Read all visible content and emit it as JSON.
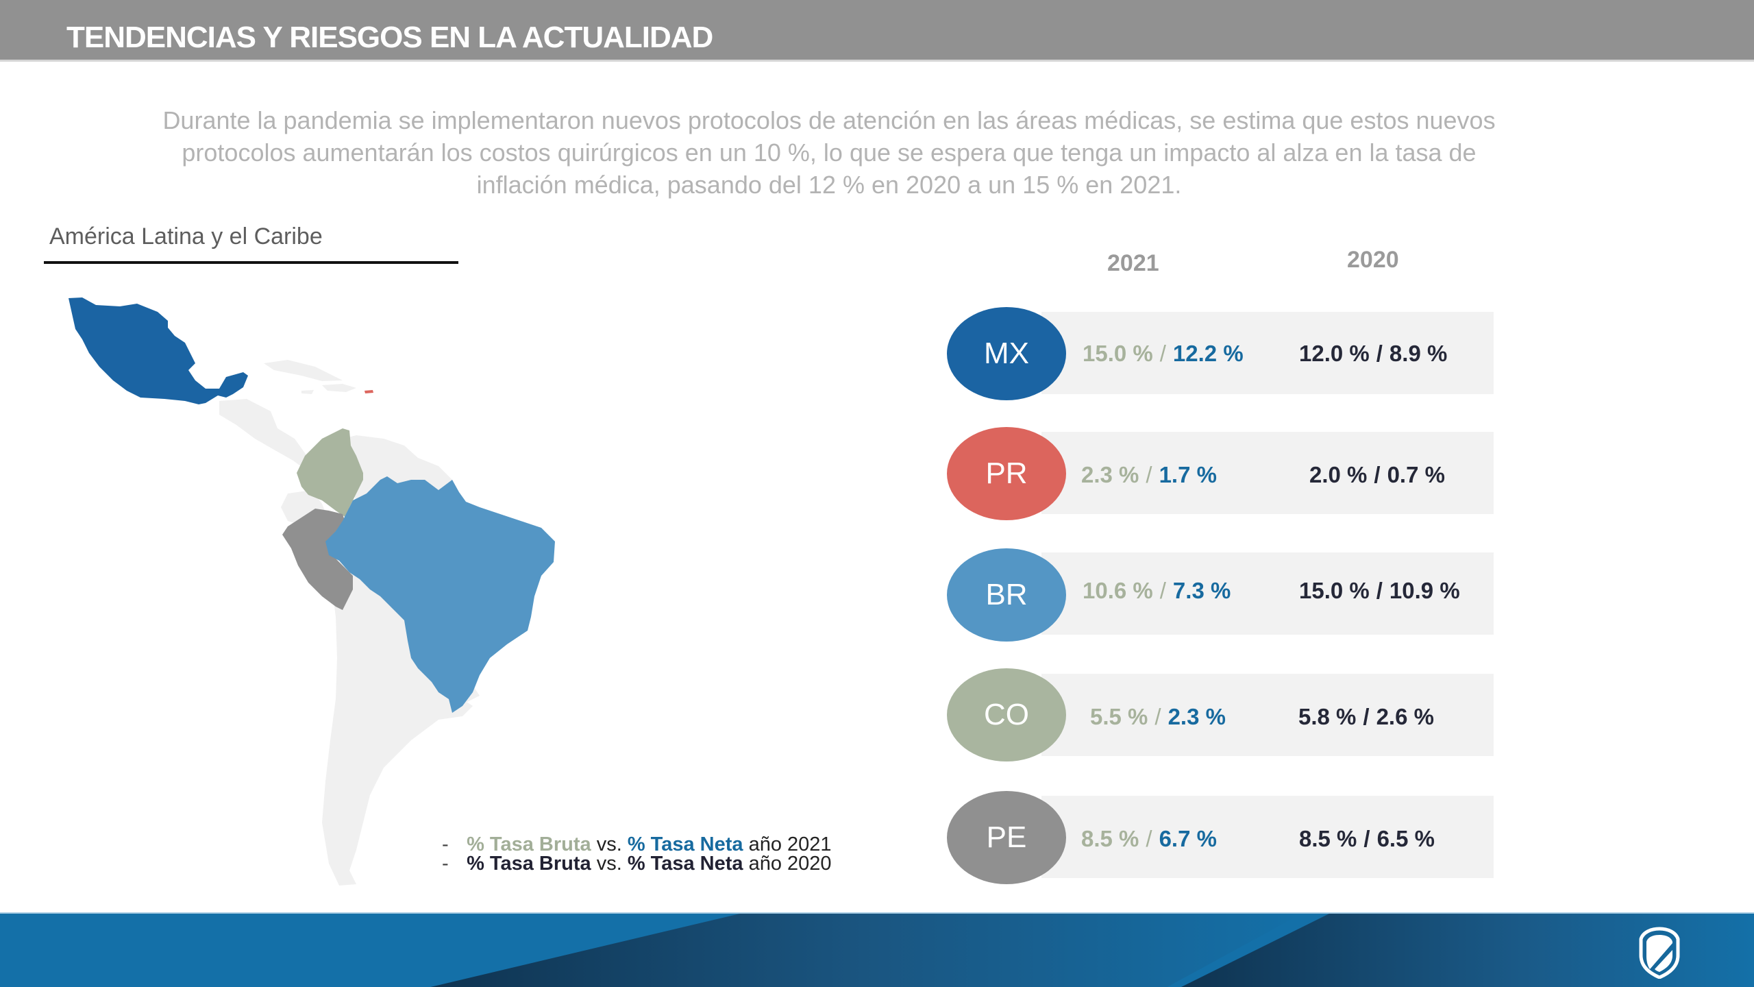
{
  "header": {
    "title": "TENDENCIAS Y RIESGOS EN LA ACTUALIDAD"
  },
  "intro": "Durante la pandemia se implementaron nuevos protocolos de atención en las áreas médicas, se estima que estos nuevos protocolos aumentarán los costos quirúrgicos en un 10 %, lo que se espera que tenga un impacto al alza en la tasa de inflación médica, pasando del 12 % en 2020 a un 15 % en 2021.",
  "region": {
    "title": "América Latina y el Caribe"
  },
  "columns": {
    "year_a": "2021",
    "year_b": "2020"
  },
  "colors": {
    "mx": "#1b64a3",
    "pr": "#dc655d",
    "br": "#5496c5",
    "co": "#a9b59f",
    "pe": "#909090",
    "other_land": "#f0f0f0",
    "bruta_2021": "#a7b29c",
    "neta_2021": "#176a9f",
    "values_2020": "#252838",
    "footer": "#1470a8"
  },
  "countries": [
    {
      "code": "MX",
      "color": "#1b64a3",
      "bruta_2021": "15.0 %",
      "neta_2021": "12.2 %",
      "bruta_2020": "12.0 %",
      "neta_2020": "8.9 %"
    },
    {
      "code": "PR",
      "color": "#dc655d",
      "bruta_2021": "2.3 %",
      "neta_2021": "1.7 %",
      "bruta_2020": "2.0 %",
      "neta_2020": "0.7 %"
    },
    {
      "code": "BR",
      "color": "#5496c5",
      "bruta_2021": "10.6 %",
      "neta_2021": "7.3 %",
      "bruta_2020": "15.0 %",
      "neta_2020": "10.9 %"
    },
    {
      "code": "CO",
      "color": "#a9b59f",
      "bruta_2021": "5.5 %",
      "neta_2021": "2.3 %",
      "bruta_2020": "5.8 %",
      "neta_2020": "2.6 %"
    },
    {
      "code": "PE",
      "color": "#909090",
      "bruta_2021": "8.5 %",
      "neta_2021": "6.7 %",
      "bruta_2020": "8.5 %",
      "neta_2020": "6.5 %"
    }
  ],
  "separator": "/",
  "legend": {
    "dash": "-",
    "row1": {
      "bruta": "% Tasa Bruta",
      "vs": "vs.",
      "neta": "% Tasa Neta",
      "year": "año 2021"
    },
    "row2": {
      "bruta": "% Tasa Bruta",
      "vs": "vs.",
      "neta": "% Tasa Neta",
      "year": "año 2020"
    }
  },
  "footer": {
    "logo_icon": "shield-slash-icon"
  }
}
